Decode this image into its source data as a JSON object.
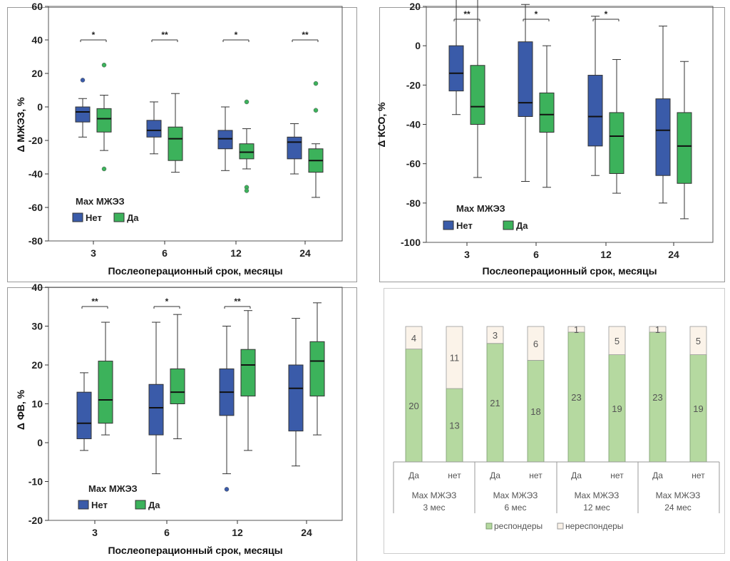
{
  "colors": {
    "net": "#3a5ba9",
    "da": "#3cb25b",
    "outlier_net": "#3a5ba9",
    "outlier_da": "#3cb25b",
    "responder": "#b5d9a0",
    "nonresponder": "#fbf3e9"
  },
  "chart_data": [
    {
      "type": "box",
      "ylabel": "Δ МЖЭЗ, %",
      "xlabel": "Послеоперационный срок, месяцы",
      "categories": [
        "3",
        "6",
        "12",
        "24"
      ],
      "ylim": [
        -80,
        60
      ],
      "yticks": [
        "60",
        "40",
        "20",
        "0",
        "-20",
        "-40",
        "-60",
        "-80"
      ],
      "legend_title": "Max МЖЭЗ",
      "series": [
        {
          "name": "Нет",
          "boxes": [
            {
              "min": -18,
              "q1": -9,
              "median": -3,
              "q3": 0,
              "max": 5,
              "outliers": [
                16
              ]
            },
            {
              "min": -28,
              "q1": -18,
              "median": -14,
              "q3": -8,
              "max": 3,
              "outliers": []
            },
            {
              "min": -38,
              "q1": -25,
              "median": -19,
              "q3": -14,
              "max": 0,
              "outliers": []
            },
            {
              "min": -40,
              "q1": -31,
              "median": -21,
              "q3": -18,
              "max": -10,
              "outliers": []
            }
          ]
        },
        {
          "name": "Да",
          "boxes": [
            {
              "min": -26,
              "q1": -15,
              "median": -7,
              "q3": -1,
              "max": 7,
              "outliers": [
                25,
                -37
              ]
            },
            {
              "min": -39,
              "q1": -32,
              "median": -19,
              "q3": -12,
              "max": 8,
              "outliers": []
            },
            {
              "min": -37,
              "q1": -31,
              "median": -27,
              "q3": -22,
              "max": -13,
              "outliers": [
                3,
                -48,
                -50
              ]
            },
            {
              "min": -54,
              "q1": -39,
              "median": -32,
              "q3": -25,
              "max": -22,
              "outliers": [
                14,
                -2
              ]
            }
          ]
        }
      ],
      "significance": [
        "*",
        "**",
        "*",
        "**"
      ]
    },
    {
      "type": "box",
      "ylabel": "Δ КСО, %",
      "xlabel": "Послеоперационный срок, месяцы",
      "categories": [
        "3",
        "6",
        "12",
        "24"
      ],
      "ylim": [
        -100,
        20
      ],
      "yticks": [
        "20",
        "0",
        "-20",
        "-40",
        "-60",
        "-80",
        "-100"
      ],
      "legend_title": "Max МЖЭЗ",
      "series": [
        {
          "name": "Нет",
          "boxes": [
            {
              "min": -35,
              "q1": -23,
              "median": -14,
              "q3": 0,
              "max": 25,
              "outliers": []
            },
            {
              "min": -69,
              "q1": -36,
              "median": -29,
              "q3": 2,
              "max": 21,
              "outliers": []
            },
            {
              "min": -66,
              "q1": -51,
              "median": -36,
              "q3": -15,
              "max": 15,
              "outliers": []
            },
            {
              "min": -80,
              "q1": -66,
              "median": -43,
              "q3": -27,
              "max": 10,
              "outliers": []
            }
          ]
        },
        {
          "name": "Да",
          "boxes": [
            {
              "min": -67,
              "q1": -40,
              "median": -31,
              "q3": -10,
              "max": 24,
              "outliers": []
            },
            {
              "min": -72,
              "q1": -44,
              "median": -35,
              "q3": -24,
              "max": 0,
              "outliers": []
            },
            {
              "min": -75,
              "q1": -65,
              "median": -46,
              "q3": -34,
              "max": -7,
              "outliers": []
            },
            {
              "min": -88,
              "q1": -70,
              "median": -51,
              "q3": -34,
              "max": -8,
              "outliers": []
            }
          ]
        }
      ],
      "significance": [
        "**",
        "*",
        "*",
        ""
      ]
    },
    {
      "type": "box",
      "ylabel": "Δ ФВ, %",
      "xlabel": "Послеоперационный срок, месяцы",
      "categories": [
        "3",
        "6",
        "12",
        "24"
      ],
      "ylim": [
        -20,
        40
      ],
      "yticks": [
        "40",
        "30",
        "20",
        "10",
        "0",
        "-10",
        "-20"
      ],
      "legend_title": "Max МЖЭЗ",
      "series": [
        {
          "name": "Нет",
          "boxes": [
            {
              "min": -2,
              "q1": 1,
              "median": 5,
              "q3": 13,
              "max": 18,
              "outliers": []
            },
            {
              "min": -8,
              "q1": 2,
              "median": 9,
              "q3": 15,
              "max": 31,
              "outliers": []
            },
            {
              "min": -8,
              "q1": 7,
              "median": 13,
              "q3": 19,
              "max": 30,
              "outliers": [
                -12
              ]
            },
            {
              "min": -6,
              "q1": 3,
              "median": 14,
              "q3": 20,
              "max": 32,
              "outliers": []
            }
          ]
        },
        {
          "name": "Да",
          "boxes": [
            {
              "min": 2,
              "q1": 5,
              "median": 11,
              "q3": 21,
              "max": 31,
              "outliers": []
            },
            {
              "min": 1,
              "q1": 10,
              "median": 13,
              "q3": 19,
              "max": 33,
              "outliers": []
            },
            {
              "min": -2,
              "q1": 12,
              "median": 20,
              "q3": 24,
              "max": 34,
              "outliers": []
            },
            {
              "min": 2,
              "q1": 12,
              "median": 21,
              "q3": 26,
              "max": 36,
              "outliers": []
            }
          ]
        }
      ],
      "significance": [
        "**",
        "*",
        "**",
        ""
      ]
    },
    {
      "type": "bar",
      "stacked": true,
      "categories": [
        "Да",
        "нет",
        "Да",
        "нет",
        "Да",
        "нет",
        "Да",
        "нет"
      ],
      "groups": [
        "Max МЖЭЗ",
        "3 мес",
        "Max МЖЭЗ",
        "6 мес",
        "Max МЖЭЗ",
        "12 мес",
        "Max МЖЭЗ",
        "24 мес"
      ],
      "series": [
        {
          "name": "респондеры",
          "values": [
            20,
            13,
            21,
            18,
            23,
            19,
            23,
            19
          ]
        },
        {
          "name": "нереспондеры",
          "values": [
            4,
            11,
            3,
            6,
            1,
            5,
            1,
            5
          ]
        }
      ],
      "legend": [
        "респондеры",
        "нереспондеры"
      ]
    }
  ]
}
